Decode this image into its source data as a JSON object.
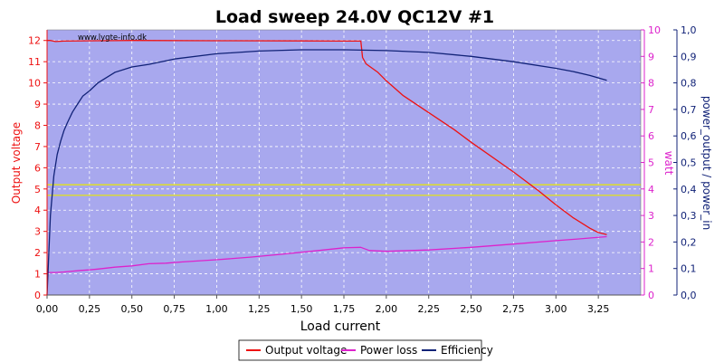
{
  "chart_data": {
    "type": "line",
    "title": "Load sweep 24.0V QC12V #1",
    "watermark": "www.lygte-info.dk",
    "xlabel": "Load current",
    "ylabel_left": "Output voltage",
    "ylabel_right1": "watt",
    "ylabel_right2": "power_output / power_in",
    "xlim": [
      0,
      3.5
    ],
    "x_ticks": [
      "0,00",
      "0,25",
      "0,50",
      "0,75",
      "1,00",
      "1,25",
      "1,50",
      "1,75",
      "2,00",
      "2,25",
      "2,50",
      "2,75",
      "3,00",
      "3,25"
    ],
    "ylim_left": [
      0,
      12.5
    ],
    "y_left_ticks": [
      "0",
      "1",
      "2",
      "3",
      "4",
      "5",
      "6",
      "7",
      "8",
      "9",
      "10",
      "11",
      "12"
    ],
    "ylim_watt": [
      0,
      10
    ],
    "y_watt_ticks": [
      "0",
      "1",
      "2",
      "3",
      "4",
      "5",
      "6",
      "7",
      "8",
      "9",
      "10"
    ],
    "ylim_eff": [
      0,
      1.0
    ],
    "y_eff_ticks": [
      "0,0",
      "0,1",
      "0,2",
      "0,3",
      "0,4",
      "0,5",
      "0,6",
      "0,7",
      "0,8",
      "0,9",
      "1,0"
    ],
    "grid": true,
    "legend_position": "bottom-center",
    "reference_lines_left_axis": [
      4.7,
      5.2
    ],
    "colors": {
      "plot_background": "#a8a8ee",
      "output_voltage": "#ee1111",
      "power_loss": "#dd22cc",
      "efficiency": "#112277",
      "reference_lines": "#e8e800"
    },
    "series": [
      {
        "name": "Output voltage",
        "axis": "left",
        "x": [
          0.0,
          0.02,
          0.05,
          0.1,
          0.3,
          0.5,
          1.0,
          1.5,
          1.75,
          1.85,
          1.86,
          1.88,
          1.95,
          2.0,
          2.1,
          2.25,
          2.4,
          2.5,
          2.75,
          2.9,
          3.0,
          3.1,
          3.2,
          3.25,
          3.3
        ],
        "y": [
          12.0,
          12.0,
          11.95,
          11.97,
          11.99,
          12.0,
          11.99,
          11.98,
          11.97,
          11.97,
          11.2,
          10.9,
          10.5,
          10.1,
          9.4,
          8.6,
          7.8,
          7.2,
          5.8,
          4.9,
          4.25,
          3.65,
          3.15,
          2.95,
          2.85
        ]
      },
      {
        "name": "Power loss",
        "axis": "watt",
        "x": [
          0.0,
          0.05,
          0.1,
          0.2,
          0.25,
          0.3,
          0.4,
          0.5,
          0.6,
          0.7,
          0.8,
          1.0,
          1.2,
          1.4,
          1.6,
          1.75,
          1.85,
          1.9,
          2.0,
          2.25,
          2.5,
          2.75,
          3.0,
          3.1,
          3.2,
          3.3
        ],
        "y": [
          0.85,
          0.85,
          0.87,
          0.93,
          0.95,
          0.98,
          1.05,
          1.1,
          1.18,
          1.2,
          1.25,
          1.33,
          1.43,
          1.55,
          1.68,
          1.78,
          1.8,
          1.68,
          1.65,
          1.7,
          1.8,
          1.92,
          2.05,
          2.1,
          2.15,
          2.2
        ]
      },
      {
        "name": "Efficiency",
        "axis": "eff",
        "x": [
          0.0,
          0.02,
          0.04,
          0.06,
          0.08,
          0.1,
          0.12,
          0.15,
          0.18,
          0.21,
          0.25,
          0.3,
          0.4,
          0.5,
          0.6,
          0.75,
          1.0,
          1.25,
          1.5,
          1.75,
          2.0,
          2.25,
          2.5,
          2.75,
          3.0,
          3.1,
          3.2,
          3.3
        ],
        "y": [
          0.0,
          0.3,
          0.45,
          0.53,
          0.58,
          0.62,
          0.65,
          0.69,
          0.72,
          0.75,
          0.77,
          0.8,
          0.84,
          0.86,
          0.87,
          0.89,
          0.91,
          0.92,
          0.925,
          0.925,
          0.922,
          0.915,
          0.9,
          0.88,
          0.855,
          0.843,
          0.828,
          0.81
        ]
      }
    ]
  }
}
